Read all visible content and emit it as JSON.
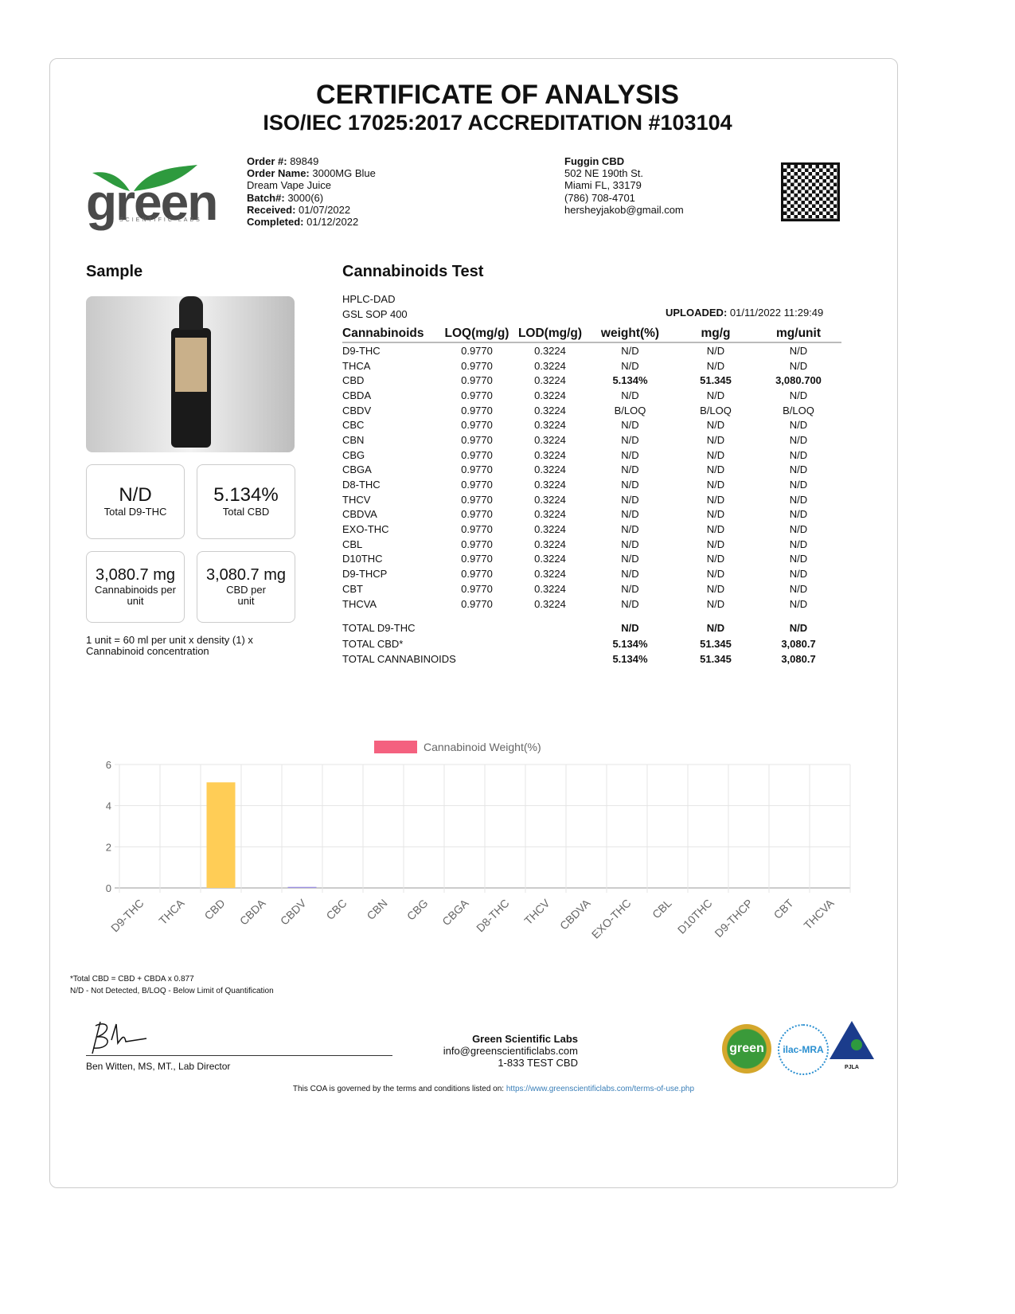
{
  "header": {
    "title": "CERTIFICATE OF ANALYSIS",
    "subtitle": "ISO/IEC 17025:2017 ACCREDITATION #103104"
  },
  "logo": {
    "text": "green",
    "tagline": "SCIENTIFIC LABS",
    "brand_color": "#2e9a3e"
  },
  "order": {
    "order_no_label": "Order #:",
    "order_no": "89849",
    "order_name_label": "Order Name:",
    "order_name": "3000MG Blue Dream Vape Juice",
    "batch_label": "Batch#:",
    "batch": "3000(6)",
    "received_label": "Received:",
    "received": "01/07/2022",
    "completed_label": "Completed:",
    "completed": "01/12/2022"
  },
  "client": {
    "name": "Fuggin CBD",
    "address1": "502 NE 190th St.",
    "address2": "Miami FL, 33179",
    "phone": "(786) 708-4701",
    "email": "hersheyjakob@gmail.com"
  },
  "sample": {
    "heading": "Sample",
    "cards": [
      {
        "value": "N/D",
        "label": "Total D9-THC"
      },
      {
        "value": "5.134%",
        "label": "Total CBD"
      },
      {
        "value": "3,080.7 mg",
        "label": "Cannabinoids per unit"
      },
      {
        "value": "3,080.7 mg",
        "label": "CBD per unit"
      }
    ],
    "unit_note": "1 unit = 60 ml per unit x density (1) x Cannabinoid concentration"
  },
  "test": {
    "heading": "Cannabinoids Test",
    "method": "HPLC-DAD",
    "sop": "GSL SOP 400",
    "uploaded_label": "UPLOADED:",
    "uploaded": "01/11/2022 11:29:49",
    "columns": [
      "Cannabinoids",
      "LOQ(mg/g)",
      "LOD(mg/g)",
      "weight(%)",
      "mg/g",
      "mg/unit"
    ],
    "rows": [
      [
        "D9-THC",
        "0.9770",
        "0.3224",
        "N/D",
        "N/D",
        "N/D"
      ],
      [
        "THCA",
        "0.9770",
        "0.3224",
        "N/D",
        "N/D",
        "N/D"
      ],
      [
        "CBD",
        "0.9770",
        "0.3224",
        "5.134%",
        "51.345",
        "3,080.700"
      ],
      [
        "CBDA",
        "0.9770",
        "0.3224",
        "N/D",
        "N/D",
        "N/D"
      ],
      [
        "CBDV",
        "0.9770",
        "0.3224",
        "B/LOQ",
        "B/LOQ",
        "B/LOQ"
      ],
      [
        "CBC",
        "0.9770",
        "0.3224",
        "N/D",
        "N/D",
        "N/D"
      ],
      [
        "CBN",
        "0.9770",
        "0.3224",
        "N/D",
        "N/D",
        "N/D"
      ],
      [
        "CBG",
        "0.9770",
        "0.3224",
        "N/D",
        "N/D",
        "N/D"
      ],
      [
        "CBGA",
        "0.9770",
        "0.3224",
        "N/D",
        "N/D",
        "N/D"
      ],
      [
        "D8-THC",
        "0.9770",
        "0.3224",
        "N/D",
        "N/D",
        "N/D"
      ],
      [
        "THCV",
        "0.9770",
        "0.3224",
        "N/D",
        "N/D",
        "N/D"
      ],
      [
        "CBDVA",
        "0.9770",
        "0.3224",
        "N/D",
        "N/D",
        "N/D"
      ],
      [
        "EXO-THC",
        "0.9770",
        "0.3224",
        "N/D",
        "N/D",
        "N/D"
      ],
      [
        "CBL",
        "0.9770",
        "0.3224",
        "N/D",
        "N/D",
        "N/D"
      ],
      [
        "D10THC",
        "0.9770",
        "0.3224",
        "N/D",
        "N/D",
        "N/D"
      ],
      [
        "D9-THCP",
        "0.9770",
        "0.3224",
        "N/D",
        "N/D",
        "N/D"
      ],
      [
        "CBT",
        "0.9770",
        "0.3224",
        "N/D",
        "N/D",
        "N/D"
      ],
      [
        "THCVA",
        "0.9770",
        "0.3224",
        "N/D",
        "N/D",
        "N/D"
      ]
    ],
    "totals": [
      [
        "TOTAL D9-THC",
        "N/D",
        "N/D",
        "N/D"
      ],
      [
        "TOTAL CBD*",
        "5.134%",
        "51.345",
        "3,080.7"
      ],
      [
        "TOTAL CANNABINOIDS",
        "5.134%",
        "51.345",
        "3,080.7"
      ]
    ]
  },
  "chart_data": {
    "type": "bar",
    "categories": [
      "D9-THC",
      "THCA",
      "CBD",
      "CBDA",
      "CBDV",
      "CBC",
      "CBN",
      "CBG",
      "CBGA",
      "D8-THC",
      "THCV",
      "CBDVA",
      "EXO-THC",
      "CBL",
      "D10THC",
      "D9-THCP",
      "CBT",
      "THCVA"
    ],
    "series": [
      {
        "name": "Cannabinoid Weight(%)",
        "values": [
          0,
          0,
          5.134,
          0,
          0.05,
          0,
          0,
          0,
          0,
          0,
          0,
          0,
          0,
          0,
          0,
          0,
          0,
          0
        ]
      }
    ],
    "ylim": [
      0,
      6
    ],
    "yticks": [
      "0",
      "2",
      "4",
      "6"
    ],
    "grid": true,
    "legend": "top",
    "legend_color": "#f4617f",
    "bar_color": "#ffcd56",
    "cbdv_color": "#9b8fe0"
  },
  "footnotes": {
    "total_cbd": "*Total CBD = CBD + CBDA x 0.877",
    "legend": "N/D - Not Detected, B/LOQ - Below Limit of Quantification"
  },
  "signature": {
    "name": "Ben Witten, MS, MT., Lab Director"
  },
  "lab": {
    "name": "Green Scientific Labs",
    "email": "info@greenscientificlabs.com",
    "phone": "1-833 TEST CBD"
  },
  "terms": {
    "text": "This COA is governed by the terms and conditions listed on:",
    "link": "https://www.greenscientificlabs.com/terms-of-use.php"
  },
  "badges": {
    "green": "green",
    "ilac": "ilac-MRA",
    "pjla": "PJLA"
  }
}
